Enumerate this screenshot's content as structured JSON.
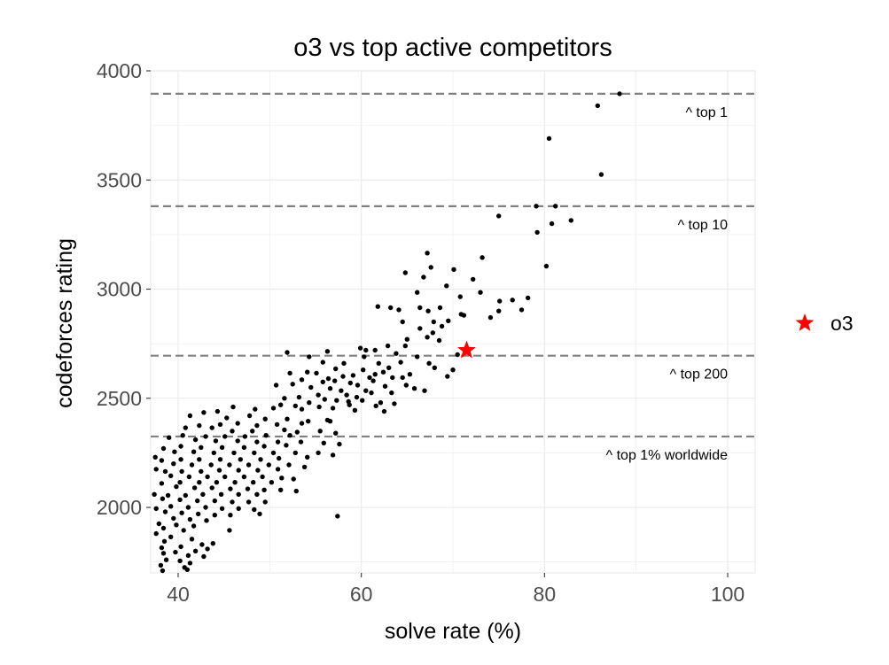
{
  "chart_data": {
    "type": "scatter",
    "title": "o3 vs top active competitors",
    "xlabel": "solve rate (%)",
    "ylabel": "codeforces rating",
    "xlim": [
      37,
      103
    ],
    "ylim": [
      1700,
      4000
    ],
    "x_ticks": [
      40,
      60,
      80,
      100
    ],
    "y_ticks": [
      2000,
      2500,
      3000,
      3500,
      4000
    ],
    "grid": true,
    "legend": {
      "position": "right",
      "entries": [
        {
          "name": "o3",
          "marker": "star",
          "color": "#ff0000"
        }
      ]
    },
    "reference_lines": [
      {
        "y": 3895,
        "label": "^ top 1"
      },
      {
        "y": 3380,
        "label": "^ top 10"
      },
      {
        "y": 2695,
        "label": "^ top 200"
      },
      {
        "y": 2325,
        "label": "^ top 1% worldwide"
      }
    ],
    "series": [
      {
        "name": "",
        "color": "#000000",
        "marker": "dot",
        "points": [
          [
            88.2,
            3895
          ],
          [
            85.8,
            3840
          ],
          [
            80.5,
            3690
          ],
          [
            86.2,
            3525
          ],
          [
            81.2,
            3380
          ],
          [
            79.1,
            3380
          ],
          [
            75.0,
            3335
          ],
          [
            82.9,
            3315
          ],
          [
            80.8,
            3300
          ],
          [
            79.2,
            3260
          ],
          [
            80.2,
            3105
          ],
          [
            73.2,
            3145
          ],
          [
            67.2,
            3165
          ],
          [
            67.6,
            3100
          ],
          [
            70.1,
            3090
          ],
          [
            64.8,
            3075
          ],
          [
            72.2,
            3045
          ],
          [
            66.8,
            3055
          ],
          [
            69.3,
            3015
          ],
          [
            66.1,
            2985
          ],
          [
            73.0,
            2985
          ],
          [
            70.8,
            2965
          ],
          [
            78.2,
            2960
          ],
          [
            76.5,
            2950
          ],
          [
            75.1,
            2945
          ],
          [
            61.8,
            2920
          ],
          [
            63.2,
            2915
          ],
          [
            66.4,
            2915
          ],
          [
            68.6,
            2915
          ],
          [
            64.1,
            2905
          ],
          [
            67.3,
            2900
          ],
          [
            70.9,
            2885
          ],
          [
            77.5,
            2905
          ],
          [
            75.0,
            2900
          ],
          [
            71.2,
            2880
          ],
          [
            74.1,
            2870
          ],
          [
            64.5,
            2850
          ],
          [
            69.5,
            2855
          ],
          [
            67.9,
            2850
          ],
          [
            68.8,
            2830
          ],
          [
            66.4,
            2820
          ],
          [
            67.8,
            2800
          ],
          [
            67.2,
            2780
          ],
          [
            65.0,
            2770
          ],
          [
            68.5,
            2765
          ],
          [
            62.9,
            2740
          ],
          [
            64.8,
            2740
          ],
          [
            59.9,
            2730
          ],
          [
            61.5,
            2720
          ],
          [
            56.3,
            2715
          ],
          [
            63.8,
            2705
          ],
          [
            51.9,
            2710
          ],
          [
            54.3,
            2690
          ],
          [
            60.5,
            2720
          ],
          [
            60.3,
            2690
          ],
          [
            66.1,
            2690
          ],
          [
            70.5,
            2700
          ],
          [
            64.3,
            2665
          ],
          [
            61.9,
            2660
          ],
          [
            55.8,
            2665
          ],
          [
            58.1,
            2660
          ],
          [
            67.4,
            2660
          ],
          [
            68.0,
            2640
          ],
          [
            63.0,
            2640
          ],
          [
            57.2,
            2635
          ],
          [
            60.2,
            2630
          ],
          [
            62.4,
            2620
          ],
          [
            65.3,
            2610
          ],
          [
            54.1,
            2620
          ],
          [
            52.2,
            2615
          ],
          [
            55.1,
            2615
          ],
          [
            59.1,
            2605
          ],
          [
            58.0,
            2600
          ],
          [
            63.4,
            2595
          ],
          [
            60.9,
            2595
          ],
          [
            64.5,
            2595
          ],
          [
            56.4,
            2590
          ],
          [
            69.4,
            2600
          ],
          [
            70.0,
            2630
          ],
          [
            53.5,
            2585
          ],
          [
            57.1,
            2580
          ],
          [
            61.3,
            2580
          ],
          [
            55.8,
            2575
          ],
          [
            58.8,
            2570
          ],
          [
            52.5,
            2565
          ],
          [
            59.6,
            2560
          ],
          [
            64.9,
            2560
          ],
          [
            62.6,
            2555
          ],
          [
            50.7,
            2560
          ],
          [
            54.5,
            2550
          ],
          [
            56.6,
            2545
          ],
          [
            57.8,
            2535
          ],
          [
            60.5,
            2535
          ],
          [
            61.1,
            2525
          ],
          [
            63.3,
            2525
          ],
          [
            58.4,
            2515
          ],
          [
            55.3,
            2515
          ],
          [
            53.2,
            2505
          ],
          [
            59.5,
            2505
          ],
          [
            51.6,
            2500
          ],
          [
            56.0,
            2495
          ],
          [
            57.3,
            2490
          ],
          [
            60.1,
            2490
          ],
          [
            62.1,
            2480
          ],
          [
            54.3,
            2480
          ],
          [
            51.2,
            2470
          ],
          [
            58.7,
            2470
          ],
          [
            52.8,
            2465
          ],
          [
            61.6,
            2465
          ],
          [
            55.4,
            2460
          ],
          [
            50.4,
            2455
          ],
          [
            56.9,
            2455
          ],
          [
            53.5,
            2450
          ],
          [
            59.3,
            2445
          ],
          [
            48.4,
            2450
          ],
          [
            46.0,
            2460
          ],
          [
            44.3,
            2440
          ],
          [
            42.8,
            2435
          ],
          [
            41.3,
            2420
          ],
          [
            45.3,
            2410
          ],
          [
            47.8,
            2420
          ],
          [
            49.5,
            2405
          ],
          [
            51.9,
            2405
          ],
          [
            54.2,
            2395
          ],
          [
            56.6,
            2395
          ],
          [
            53.5,
            2385
          ],
          [
            50.8,
            2380
          ],
          [
            48.6,
            2375
          ],
          [
            46.5,
            2385
          ],
          [
            44.6,
            2380
          ],
          [
            42.3,
            2375
          ],
          [
            40.8,
            2365
          ],
          [
            43.7,
            2365
          ],
          [
            45.9,
            2350
          ],
          [
            48.1,
            2350
          ],
          [
            51.6,
            2355
          ],
          [
            53.0,
            2345
          ],
          [
            55.5,
            2350
          ],
          [
            57.2,
            2340
          ],
          [
            52.2,
            2330
          ],
          [
            49.6,
            2330
          ],
          [
            47.3,
            2325
          ],
          [
            45.1,
            2325
          ],
          [
            43.0,
            2325
          ],
          [
            40.5,
            2330
          ],
          [
            39.0,
            2320
          ],
          [
            41.9,
            2310
          ],
          [
            44.1,
            2305
          ],
          [
            46.5,
            2305
          ],
          [
            48.6,
            2300
          ],
          [
            50.9,
            2300
          ],
          [
            53.4,
            2300
          ],
          [
            55.9,
            2295
          ],
          [
            57.6,
            2290
          ],
          [
            51.8,
            2285
          ],
          [
            49.4,
            2280
          ],
          [
            47.2,
            2275
          ],
          [
            44.8,
            2275
          ],
          [
            42.5,
            2275
          ],
          [
            40.3,
            2280
          ],
          [
            38.4,
            2270
          ],
          [
            39.6,
            2255
          ],
          [
            41.7,
            2255
          ],
          [
            43.9,
            2250
          ],
          [
            46.1,
            2250
          ],
          [
            48.3,
            2250
          ],
          [
            50.4,
            2250
          ],
          [
            52.8,
            2250
          ],
          [
            55.3,
            2250
          ],
          [
            56.9,
            2240
          ],
          [
            54.1,
            2230
          ],
          [
            51.0,
            2225
          ],
          [
            49.0,
            2220
          ],
          [
            46.8,
            2220
          ],
          [
            44.6,
            2220
          ],
          [
            42.3,
            2220
          ],
          [
            40.3,
            2220
          ],
          [
            38.2,
            2215
          ],
          [
            37.5,
            2230
          ],
          [
            39.5,
            2200
          ],
          [
            41.5,
            2195
          ],
          [
            43.6,
            2195
          ],
          [
            45.6,
            2195
          ],
          [
            47.7,
            2195
          ],
          [
            49.9,
            2195
          ],
          [
            52.1,
            2195
          ],
          [
            53.8,
            2185
          ],
          [
            50.9,
            2175
          ],
          [
            48.7,
            2170
          ],
          [
            46.6,
            2170
          ],
          [
            44.5,
            2170
          ],
          [
            42.5,
            2165
          ],
          [
            40.4,
            2165
          ],
          [
            38.6,
            2165
          ],
          [
            37.6,
            2175
          ],
          [
            39.2,
            2145
          ],
          [
            41.2,
            2140
          ],
          [
            43.2,
            2140
          ],
          [
            45.1,
            2140
          ],
          [
            47.2,
            2140
          ],
          [
            49.2,
            2140
          ],
          [
            51.3,
            2135
          ],
          [
            52.6,
            2130
          ],
          [
            50.2,
            2115
          ],
          [
            48.2,
            2115
          ],
          [
            46.2,
            2115
          ],
          [
            44.2,
            2115
          ],
          [
            42.3,
            2115
          ],
          [
            40.2,
            2115
          ],
          [
            38.2,
            2110
          ],
          [
            39.8,
            2095
          ],
          [
            41.8,
            2090
          ],
          [
            43.7,
            2090
          ],
          [
            45.7,
            2085
          ],
          [
            47.6,
            2085
          ],
          [
            49.4,
            2080
          ],
          [
            51.2,
            2080
          ],
          [
            52.9,
            2075
          ],
          [
            48.6,
            2060
          ],
          [
            46.6,
            2060
          ],
          [
            44.7,
            2060
          ],
          [
            42.7,
            2060
          ],
          [
            40.8,
            2055
          ],
          [
            38.9,
            2055
          ],
          [
            37.4,
            2060
          ],
          [
            38.3,
            2040
          ],
          [
            40.2,
            2035
          ],
          [
            42.1,
            2030
          ],
          [
            44.0,
            2030
          ],
          [
            45.9,
            2025
          ],
          [
            47.7,
            2025
          ],
          [
            49.5,
            2025
          ],
          [
            39.2,
            2005
          ],
          [
            41.1,
            2000
          ],
          [
            43.0,
            2000
          ],
          [
            44.8,
            1995
          ],
          [
            46.6,
            1995
          ],
          [
            48.3,
            1990
          ],
          [
            37.6,
            1995
          ],
          [
            38.6,
            1980
          ],
          [
            40.4,
            1975
          ],
          [
            42.2,
            1970
          ],
          [
            44.0,
            1965
          ],
          [
            45.7,
            1965
          ],
          [
            48.9,
            1970
          ],
          [
            57.4,
            1960
          ],
          [
            39.5,
            1950
          ],
          [
            41.3,
            1945
          ],
          [
            43.1,
            1940
          ],
          [
            37.9,
            1925
          ],
          [
            39.8,
            1920
          ],
          [
            41.7,
            1915
          ],
          [
            38.4,
            1905
          ],
          [
            40.6,
            1895
          ],
          [
            45.6,
            1895
          ],
          [
            37.6,
            1880
          ],
          [
            39.2,
            1865
          ],
          [
            41.5,
            1855
          ],
          [
            38.5,
            1845
          ],
          [
            43.8,
            1835
          ],
          [
            42.6,
            1830
          ],
          [
            40.3,
            1820
          ],
          [
            38.2,
            1815
          ],
          [
            43.2,
            1810
          ],
          [
            41.9,
            1800
          ],
          [
            39.7,
            1795
          ],
          [
            38.4,
            1790
          ],
          [
            41.1,
            1780
          ],
          [
            42.8,
            1775
          ],
          [
            38.7,
            1760
          ],
          [
            40.2,
            1755
          ],
          [
            41.3,
            1745
          ],
          [
            38.1,
            1735
          ],
          [
            40.7,
            1725
          ],
          [
            38.3,
            1710
          ],
          [
            41.0,
            1715
          ],
          [
            61.5,
            2610
          ],
          [
            66.9,
            2535
          ],
          [
            65.8,
            2545
          ],
          [
            63.6,
            2475
          ],
          [
            56.3,
            2400
          ],
          [
            62.5,
            2440
          ],
          [
            58.6,
            2485
          ]
        ]
      },
      {
        "name": "o3",
        "color": "#ff0000",
        "marker": "star",
        "points": [
          [
            71.5,
            2720
          ]
        ]
      }
    ]
  }
}
